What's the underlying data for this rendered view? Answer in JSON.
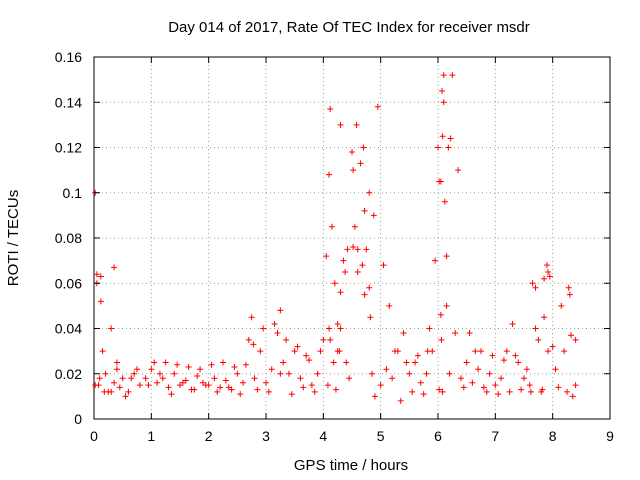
{
  "chart_data": {
    "type": "scatter",
    "title": "Day 014 of 2017, Rate Of TEC Index for receiver msdr",
    "xlabel": "GPS time / hours",
    "ylabel": "ROTI / TECUs",
    "xlim": [
      0,
      9
    ],
    "ylim": [
      0,
      0.16
    ],
    "x_ticks": [
      "0",
      "1",
      "2",
      "3",
      "4",
      "5",
      "6",
      "7",
      "8",
      "9"
    ],
    "y_ticks": [
      "0",
      "0.02",
      "0.04",
      "0.06",
      "0.08",
      "0.1",
      "0.12",
      "0.14",
      "0.16"
    ],
    "grid": true,
    "marker": "+",
    "marker_color": "#ff0000",
    "series": [
      {
        "name": "ROTI",
        "x": [
          0.02,
          0.05,
          0.1,
          0.15,
          0.2,
          0.25,
          0.3,
          0.35,
          0.4,
          0.45,
          0.5,
          0.6,
          0.7,
          0.8,
          0.9,
          1.0,
          1.1,
          1.2,
          1.3,
          1.4,
          1.5,
          1.6,
          1.7,
          1.8,
          1.9,
          2.0,
          2.1,
          2.2,
          2.3,
          2.4,
          2.5,
          2.6,
          2.7,
          2.75,
          2.8,
          2.9,
          3.0,
          3.1,
          3.2,
          3.3,
          3.4,
          3.5,
          3.6,
          3.7,
          3.8,
          3.9,
          4.0,
          4.05,
          4.1,
          4.12,
          4.15,
          4.2,
          4.25,
          4.3,
          4.35,
          4.4,
          4.45,
          4.5,
          4.55,
          4.6,
          4.65,
          4.7,
          4.75,
          4.8,
          4.85,
          4.9,
          5.0,
          5.1,
          5.2,
          5.3,
          5.4,
          5.5,
          5.6,
          5.7,
          5.8,
          5.85,
          5.9,
          5.95,
          6.0,
          6.05,
          6.1,
          6.15,
          6.2,
          6.3,
          6.4,
          6.5,
          6.6,
          6.7,
          6.8,
          6.9,
          7.0,
          7.1,
          7.2,
          7.3,
          7.4,
          7.5,
          7.6,
          7.65,
          7.7,
          7.8,
          7.85,
          7.9,
          8.0,
          8.1,
          8.2,
          8.3,
          8.4,
          0.05,
          0.12,
          0.3,
          0.55,
          0.65,
          0.95,
          1.15,
          1.35,
          1.55,
          1.75,
          1.95,
          2.15,
          2.35,
          2.55,
          2.85,
          3.05,
          3.25,
          3.45,
          3.65,
          3.85,
          4.08,
          4.22,
          4.38,
          4.52,
          4.68,
          4.82,
          4.95,
          5.15,
          5.35,
          5.55,
          5.75,
          6.02,
          6.08,
          6.12,
          6.18,
          6.25,
          6.45,
          6.65,
          6.85,
          7.05,
          7.25,
          7.45,
          7.62,
          7.82,
          7.95,
          8.05,
          8.25,
          8.35,
          0.08,
          0.18,
          0.4,
          0.75,
          1.05,
          1.25,
          1.45,
          1.65,
          1.85,
          2.05,
          2.25,
          2.45,
          2.65,
          2.95,
          3.15,
          3.35,
          3.55,
          3.75,
          3.95,
          4.18,
          4.28,
          4.42,
          4.58,
          4.72,
          4.88,
          5.05,
          5.25,
          5.45,
          5.65,
          5.82,
          6.06,
          6.22,
          6.35,
          6.55,
          6.75,
          6.95,
          7.15,
          7.35,
          7.55,
          7.75,
          7.92,
          8.15,
          8.32,
          4.1,
          4.12,
          4.3,
          4.3,
          4.52,
          4.72,
          4.8,
          6.05,
          6.07,
          6.1,
          6.08,
          6.02,
          6.15,
          0.02,
          0.12,
          0.35,
          2.78,
          3.25,
          4.25,
          4.6,
          7.7,
          7.85,
          7.92,
          8.28,
          8.4
        ],
        "y": [
          0.015,
          0.06,
          0.018,
          0.03,
          0.02,
          0.012,
          0.04,
          0.016,
          0.022,
          0.014,
          0.018,
          0.012,
          0.02,
          0.015,
          0.018,
          0.022,
          0.016,
          0.018,
          0.014,
          0.02,
          0.015,
          0.017,
          0.013,
          0.019,
          0.016,
          0.015,
          0.018,
          0.014,
          0.017,
          0.013,
          0.02,
          0.016,
          0.035,
          0.045,
          0.018,
          0.03,
          0.016,
          0.022,
          0.038,
          0.025,
          0.02,
          0.03,
          0.018,
          0.028,
          0.015,
          0.02,
          0.035,
          0.072,
          0.108,
          0.137,
          0.085,
          0.06,
          0.03,
          0.04,
          0.07,
          0.025,
          0.018,
          0.118,
          0.085,
          0.065,
          0.113,
          0.12,
          0.075,
          0.058,
          0.02,
          0.01,
          0.015,
          0.022,
          0.018,
          0.03,
          0.038,
          0.02,
          0.025,
          0.016,
          0.02,
          0.04,
          0.03,
          0.07,
          0.12,
          0.105,
          0.14,
          0.05,
          0.02,
          0.038,
          0.018,
          0.025,
          0.016,
          0.022,
          0.014,
          0.02,
          0.015,
          0.018,
          0.03,
          0.042,
          0.025,
          0.018,
          0.015,
          0.06,
          0.04,
          0.012,
          0.045,
          0.068,
          0.032,
          0.014,
          0.03,
          0.055,
          0.015,
          0.064,
          0.052,
          0.012,
          0.01,
          0.018,
          0.015,
          0.02,
          0.011,
          0.016,
          0.013,
          0.015,
          0.012,
          0.014,
          0.011,
          0.013,
          0.012,
          0.02,
          0.011,
          0.014,
          0.012,
          0.015,
          0.013,
          0.065,
          0.11,
          0.068,
          0.045,
          0.138,
          0.05,
          0.008,
          0.012,
          0.011,
          0.013,
          0.012,
          0.096,
          0.12,
          0.152,
          0.014,
          0.03,
          0.012,
          0.011,
          0.012,
          0.013,
          0.012,
          0.013,
          0.063,
          0.022,
          0.012,
          0.01,
          0.015,
          0.012,
          0.025,
          0.022,
          0.025,
          0.025,
          0.024,
          0.023,
          0.022,
          0.024,
          0.025,
          0.023,
          0.024,
          0.04,
          0.042,
          0.035,
          0.032,
          0.026,
          0.03,
          0.025,
          0.03,
          0.075,
          0.13,
          0.055,
          0.09,
          0.068,
          0.03,
          0.025,
          0.028,
          0.03,
          0.035,
          0.124,
          0.11,
          0.038,
          0.03,
          0.028,
          0.026,
          0.028,
          0.022,
          0.035,
          0.03,
          0.05,
          0.037,
          0.04,
          0.035,
          0.056,
          0.13,
          0.076,
          0.092,
          0.1,
          0.046,
          0.145,
          0.152,
          0.125,
          0.105,
          0.072,
          0.1,
          0.063,
          0.067,
          0.033,
          0.048,
          0.042,
          0.075,
          0.058,
          0.062,
          0.065,
          0.058,
          0.035
        ]
      }
    ]
  }
}
